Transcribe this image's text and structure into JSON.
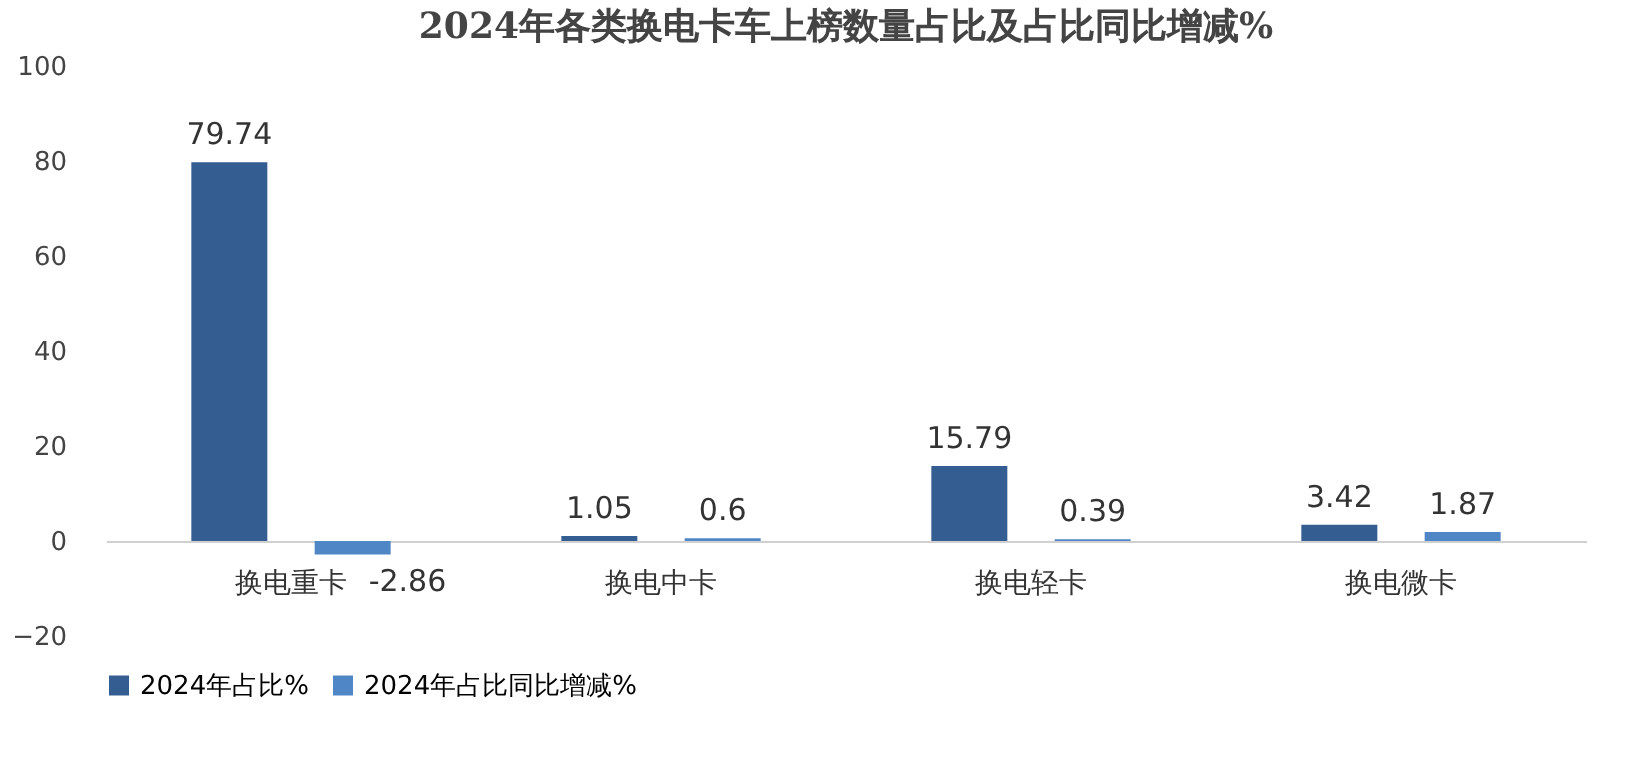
{
  "chart_data": {
    "type": "bar",
    "title": "2024年各类换电卡车上榜数量占比及占比同比增减%",
    "categories": [
      "换电重卡",
      "换电中卡",
      "换电轻卡",
      "换电微卡"
    ],
    "series": [
      {
        "name": "2024年占比%",
        "color": "#345d91",
        "values": [
          79.74,
          1.05,
          15.79,
          3.42
        ]
      },
      {
        "name": "2024年占比同比增减%",
        "color": "#4f86c6",
        "values": [
          -2.86,
          0.6,
          0.39,
          1.87
        ]
      }
    ],
    "ylim": [
      -20,
      100
    ],
    "yticks": [
      -20,
      0,
      20,
      40,
      60,
      80,
      100
    ],
    "grid": false,
    "legend": "bottom",
    "data_labels": true
  }
}
